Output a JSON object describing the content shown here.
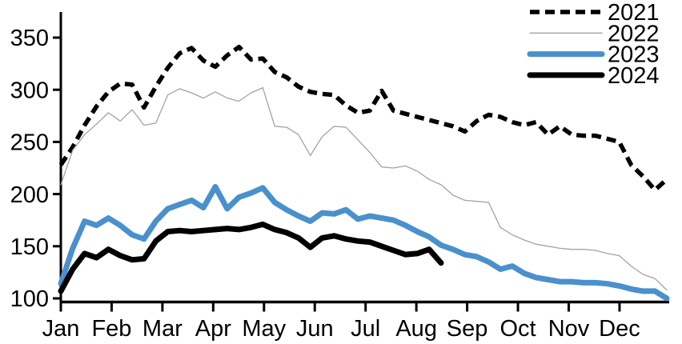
{
  "chart_data": {
    "type": "line",
    "title": "",
    "x_axis": {
      "tick_labels": [
        "Jan",
        "Feb",
        "Mar",
        "Apr",
        "May",
        "Jun",
        "Jul",
        "Aug",
        "Sep",
        "Oct",
        "Nov",
        "Dec"
      ],
      "x_unit": "week",
      "points_per_year": 52
    },
    "y_axis": {
      "ticks": [
        350,
        300,
        250,
        200,
        150,
        100
      ],
      "min": 100,
      "max": 375
    },
    "grid": false,
    "legend": {
      "position": "top-right",
      "entries": [
        "2021",
        "2022",
        "2023",
        "2024"
      ]
    },
    "colors": {
      "black": "#000000",
      "gray": "#a3a3a3",
      "blue": "#4a90cd"
    },
    "series": [
      {
        "name": "2021",
        "color": "#000000",
        "style": "dashed",
        "width": 5.5,
        "values": [
          228,
          245,
          266,
          284,
          298,
          306,
          305,
          283,
          303,
          321,
          335,
          340,
          328,
          322,
          333,
          341,
          329,
          330,
          317,
          312,
          303,
          298,
          296,
          295,
          285,
          278,
          280,
          299,
          280,
          277,
          274,
          271,
          268,
          265,
          260,
          270,
          276,
          274,
          269,
          266,
          269,
          257,
          265,
          257,
          256,
          256,
          253,
          250,
          228,
          217,
          204,
          214
        ]
      },
      {
        "name": "2022",
        "color": "#a3a3a3",
        "style": "solid",
        "width": 1.3,
        "values": [
          209,
          242,
          257,
          267,
          278,
          270,
          281,
          266,
          268,
          295,
          301,
          297,
          292,
          298,
          292,
          289,
          297,
          302,
          265,
          264,
          257,
          237,
          255,
          265,
          264,
          252,
          240,
          226,
          225,
          227,
          222,
          214,
          209,
          199,
          194,
          193,
          192,
          168,
          161,
          156,
          152,
          150,
          148,
          147,
          147,
          146,
          143,
          141,
          131,
          123,
          119,
          108
        ]
      },
      {
        "name": "2023",
        "color": "#4a90cd",
        "style": "solid",
        "width": 7,
        "values": [
          114,
          148,
          174,
          170,
          177,
          170,
          161,
          157,
          174,
          186,
          190,
          194,
          187,
          207,
          186,
          197,
          201,
          206,
          192,
          185,
          179,
          174,
          182,
          181,
          185,
          176,
          179,
          177,
          175,
          170,
          164,
          159,
          151,
          147,
          142,
          140,
          135,
          128,
          131,
          124,
          120,
          118,
          116,
          116,
          115,
          115,
          114,
          112,
          109,
          107,
          107,
          100
        ]
      },
      {
        "name": "2024",
        "color": "#000000",
        "style": "solid",
        "width": 7,
        "values": [
          107,
          128,
          143,
          139,
          147,
          141,
          137,
          138,
          155,
          164,
          165,
          164,
          165,
          166,
          167,
          166,
          168,
          171,
          166,
          163,
          158,
          149,
          158,
          160,
          157,
          155,
          154,
          150,
          146,
          142,
          143,
          147,
          134
        ]
      }
    ]
  }
}
